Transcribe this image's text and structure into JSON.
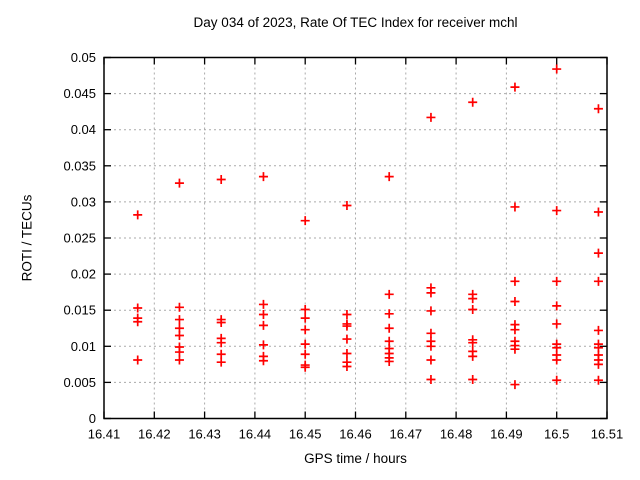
{
  "chart_data": {
    "type": "scatter",
    "title": "Day 034 of 2023, Rate Of TEC Index for receiver mchl",
    "xlabel": "GPS time / hours",
    "ylabel": "ROTI / TECUs",
    "xlim": [
      16.41,
      16.51
    ],
    "ylim": [
      0,
      0.05
    ],
    "grid": true,
    "legend": "none",
    "marker": {
      "shape": "plus",
      "color": "#ff0000",
      "size": 9
    },
    "grid_color": "#aaaaaa",
    "frame_color": "#000000",
    "xticks": {
      "values": [
        16.41,
        16.42,
        16.43,
        16.44,
        16.45,
        16.46,
        16.47,
        16.48,
        16.49,
        16.5,
        16.51
      ],
      "labels": [
        "16.41",
        "16.42",
        "16.43",
        "16.44",
        "16.45",
        "16.46",
        "16.47",
        "16.48",
        "16.49",
        "16.5",
        "16.51"
      ]
    },
    "yticks": {
      "values": [
        0,
        0.005,
        0.01,
        0.015,
        0.02,
        0.025,
        0.03,
        0.035,
        0.04,
        0.045,
        0.05
      ],
      "labels": [
        "0",
        "0.005",
        "0.01",
        "0.015",
        "0.02",
        "0.025",
        "0.03",
        "0.035",
        "0.04",
        "0.045",
        "0.05"
      ]
    },
    "series": [
      {
        "name": "ROTI",
        "points": [
          [
            16.4167,
            0.0282
          ],
          [
            16.4167,
            0.0153
          ],
          [
            16.4167,
            0.0139
          ],
          [
            16.4167,
            0.0134
          ],
          [
            16.4167,
            0.0081
          ],
          [
            16.425,
            0.0326
          ],
          [
            16.425,
            0.0154
          ],
          [
            16.425,
            0.0137
          ],
          [
            16.425,
            0.0125
          ],
          [
            16.425,
            0.0115
          ],
          [
            16.425,
            0.0099
          ],
          [
            16.425,
            0.0092
          ],
          [
            16.425,
            0.0081
          ],
          [
            16.4333,
            0.0331
          ],
          [
            16.4333,
            0.0137
          ],
          [
            16.4333,
            0.0133
          ],
          [
            16.4333,
            0.0111
          ],
          [
            16.4333,
            0.0105
          ],
          [
            16.4333,
            0.0089
          ],
          [
            16.4333,
            0.0078
          ],
          [
            16.4417,
            0.0335
          ],
          [
            16.4417,
            0.0158
          ],
          [
            16.4417,
            0.0144
          ],
          [
            16.4417,
            0.0129
          ],
          [
            16.4417,
            0.0102
          ],
          [
            16.4417,
            0.0086
          ],
          [
            16.4417,
            0.008
          ],
          [
            16.45,
            0.0274
          ],
          [
            16.45,
            0.0151
          ],
          [
            16.45,
            0.0139
          ],
          [
            16.45,
            0.0123
          ],
          [
            16.45,
            0.0103
          ],
          [
            16.45,
            0.0089
          ],
          [
            16.45,
            0.0074
          ],
          [
            16.45,
            0.0071
          ],
          [
            16.4583,
            0.0295
          ],
          [
            16.4583,
            0.0144
          ],
          [
            16.4583,
            0.0131
          ],
          [
            16.4583,
            0.0128
          ],
          [
            16.4583,
            0.011
          ],
          [
            16.4583,
            0.009
          ],
          [
            16.4583,
            0.0078
          ],
          [
            16.4583,
            0.0072
          ],
          [
            16.4667,
            0.0335
          ],
          [
            16.4667,
            0.0172
          ],
          [
            16.4667,
            0.0145
          ],
          [
            16.4667,
            0.0125
          ],
          [
            16.4667,
            0.0107
          ],
          [
            16.4667,
            0.0097
          ],
          [
            16.4667,
            0.009
          ],
          [
            16.4667,
            0.0084
          ],
          [
            16.4667,
            0.0079
          ],
          [
            16.475,
            0.0417
          ],
          [
            16.475,
            0.0181
          ],
          [
            16.475,
            0.0174
          ],
          [
            16.475,
            0.0149
          ],
          [
            16.475,
            0.0118
          ],
          [
            16.475,
            0.0107
          ],
          [
            16.475,
            0.01
          ],
          [
            16.475,
            0.0081
          ],
          [
            16.475,
            0.0054
          ],
          [
            16.4833,
            0.0438
          ],
          [
            16.4833,
            0.0172
          ],
          [
            16.4833,
            0.0166
          ],
          [
            16.4833,
            0.0151
          ],
          [
            16.4833,
            0.0109
          ],
          [
            16.4833,
            0.0105
          ],
          [
            16.4833,
            0.0093
          ],
          [
            16.4833,
            0.0086
          ],
          [
            16.4833,
            0.0054
          ],
          [
            16.4917,
            0.0459
          ],
          [
            16.4917,
            0.0293
          ],
          [
            16.4917,
            0.019
          ],
          [
            16.4917,
            0.0162
          ],
          [
            16.4917,
            0.013
          ],
          [
            16.4917,
            0.0123
          ],
          [
            16.4917,
            0.0107
          ],
          [
            16.4917,
            0.0101
          ],
          [
            16.4917,
            0.0096
          ],
          [
            16.4917,
            0.0047
          ],
          [
            16.5,
            0.0484
          ],
          [
            16.5,
            0.0288
          ],
          [
            16.5,
            0.019
          ],
          [
            16.5,
            0.0156
          ],
          [
            16.5,
            0.0131
          ],
          [
            16.5,
            0.0103
          ],
          [
            16.5,
            0.0098
          ],
          [
            16.5,
            0.0088
          ],
          [
            16.5,
            0.0081
          ],
          [
            16.5,
            0.0053
          ],
          [
            16.5083,
            0.0429
          ],
          [
            16.5083,
            0.0286
          ],
          [
            16.5083,
            0.0229
          ],
          [
            16.5083,
            0.019
          ],
          [
            16.5083,
            0.0122
          ],
          [
            16.5083,
            0.0103
          ],
          [
            16.5083,
            0.0098
          ],
          [
            16.5083,
            0.0088
          ],
          [
            16.5083,
            0.0081
          ],
          [
            16.5083,
            0.0075
          ],
          [
            16.5083,
            0.0053
          ]
        ]
      }
    ]
  }
}
